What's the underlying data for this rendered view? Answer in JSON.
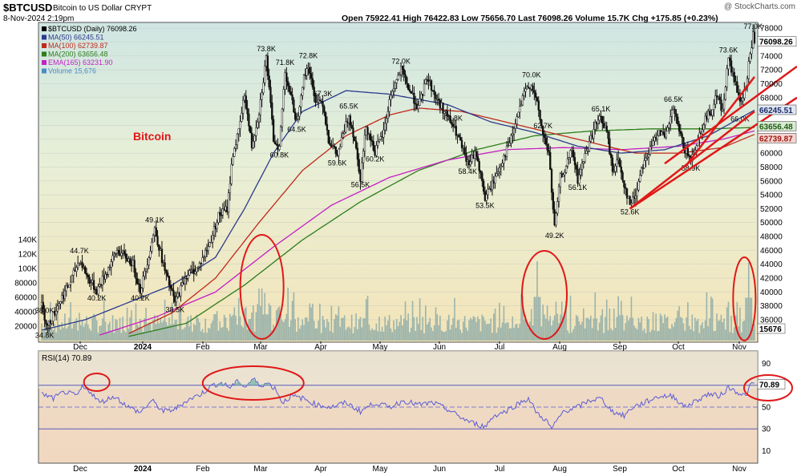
{
  "header": {
    "symbol": "$BTCUSD",
    "desc": "Bitcoin to US Dollar  CRYPT",
    "date": "8-Nov-2024 2:19pm",
    "ohlc": "Open 75922.41  High 76422.83  Low 75656.70  Last 76098.26  Volume 15.7K  Chg +175.85 (+0.23%)",
    "watermark": "@ StockCharts.com"
  },
  "legend": [
    {
      "text": "$BTCUSD (Daily) 76098.26",
      "color": "#000000"
    },
    {
      "text": "MA(50) 66245.51",
      "color": "#2b3a8c"
    },
    {
      "text": "MA(100) 62739.87",
      "color": "#c0281c"
    },
    {
      "text": "MA(200) 63656.48",
      "color": "#2e7d1c"
    },
    {
      "text": "EMA(165) 63231.90",
      "color": "#c51fc5"
    },
    {
      "text": "Volume 15,676",
      "color": "#4a8cc7"
    }
  ],
  "annotation_text": "Bitcoin",
  "colors": {
    "price": "#000000",
    "ma50": "#2b3a8c",
    "ma100": "#c0281c",
    "ma200": "#2e7d1c",
    "ema165": "#c51fc5",
    "volume": "#7fa3a6",
    "rsi": "#5b5bd6",
    "annot": "#e01818"
  },
  "right_axis_ticks": [
    "78000",
    "76000",
    "74000",
    "72000",
    "70000",
    "68000",
    "66000",
    "64000",
    "62000",
    "60000",
    "58000",
    "56000",
    "54000",
    "52000",
    "50000",
    "48000",
    "46000",
    "44000",
    "42000",
    "40000",
    "38000",
    "36000"
  ],
  "price_tags": {
    "last": "76098.26",
    "ma50": "66245.51",
    "ma200": "63656.48",
    "ma100": "62739.87",
    "volume": "15676"
  },
  "volume_ticks": [
    "140K",
    "120K",
    "100K",
    "80000",
    "60000",
    "40000",
    "20000"
  ],
  "rsi": {
    "label": "RSI(14) 70.89",
    "value_tag": "70.89",
    "ticks": [
      "90",
      "70",
      "50",
      "30",
      "10"
    ]
  },
  "x_labels": [
    "Dec",
    "2024",
    "Feb",
    "Mar",
    "Apr",
    "May",
    "Jun",
    "Jul",
    "Aug",
    "Sep",
    "Oct",
    "Nov"
  ],
  "chart_data": {
    "type": "candlestick",
    "title": "$BTCUSD Bitcoin to US Dollar CRYPT (Daily)",
    "price_range": [
      33000,
      78600
    ],
    "price_path": [
      [
        0,
        38.0
      ],
      [
        4,
        35.0
      ],
      [
        12,
        38.5
      ],
      [
        20,
        41.5
      ],
      [
        26,
        44.7
      ],
      [
        32,
        42.0
      ],
      [
        38,
        40.2
      ],
      [
        45,
        43.0
      ],
      [
        52,
        46.0
      ],
      [
        58,
        45.0
      ],
      [
        63,
        44.0
      ],
      [
        68,
        40.2
      ],
      [
        72,
        43.5
      ],
      [
        78,
        49.1
      ],
      [
        85,
        43.0
      ],
      [
        92,
        38.5
      ],
      [
        100,
        42.5
      ],
      [
        108,
        43.5
      ],
      [
        116,
        47.0
      ],
      [
        122,
        51.0
      ],
      [
        128,
        52.0
      ],
      [
        132,
        60.0
      ],
      [
        136,
        63.0
      ],
      [
        140,
        68.5
      ],
      [
        145,
        61.0
      ],
      [
        150,
        66.0
      ],
      [
        155,
        73.8
      ],
      [
        160,
        62.0
      ],
      [
        164,
        60.8
      ],
      [
        168,
        71.8
      ],
      [
        172,
        68.0
      ],
      [
        176,
        64.5
      ],
      [
        180,
        70.0
      ],
      [
        184,
        72.8
      ],
      [
        188,
        68.0
      ],
      [
        194,
        67.3
      ],
      [
        198,
        62.0
      ],
      [
        204,
        59.6
      ],
      [
        212,
        65.5
      ],
      [
        216,
        62.0
      ],
      [
        220,
        56.5
      ],
      [
        224,
        64.0
      ],
      [
        230,
        60.2
      ],
      [
        236,
        63.0
      ],
      [
        241,
        68.5
      ],
      [
        248,
        72.0
      ],
      [
        254,
        69.0
      ],
      [
        260,
        66.5
      ],
      [
        266,
        71.0
      ],
      [
        272,
        68.0
      ],
      [
        278,
        66.0
      ],
      [
        284,
        63.8
      ],
      [
        288,
        62.0
      ],
      [
        294,
        58.4
      ],
      [
        300,
        60.0
      ],
      [
        306,
        53.5
      ],
      [
        312,
        56.0
      ],
      [
        318,
        59.0
      ],
      [
        324,
        62.0
      ],
      [
        330,
        66.5
      ],
      [
        334,
        69.0
      ],
      [
        338,
        70.0
      ],
      [
        342,
        67.0
      ],
      [
        346,
        62.7
      ],
      [
        350,
        60.0
      ],
      [
        354,
        49.2
      ],
      [
        358,
        56.5
      ],
      [
        362,
        58.0
      ],
      [
        366,
        60.5
      ],
      [
        370,
        56.1
      ],
      [
        374,
        59.0
      ],
      [
        378,
        61.5
      ],
      [
        382,
        64.0
      ],
      [
        386,
        65.1
      ],
      [
        390,
        63.0
      ],
      [
        394,
        57.5
      ],
      [
        398,
        59.0
      ],
      [
        402,
        55.5
      ],
      [
        406,
        52.6
      ],
      [
        410,
        54.0
      ],
      [
        414,
        58.0
      ],
      [
        420,
        60.5
      ],
      [
        426,
        63.5
      ],
      [
        430,
        62.0
      ],
      [
        436,
        66.5
      ],
      [
        440,
        63.0
      ],
      [
        444,
        60.5
      ],
      [
        448,
        59.0
      ],
      [
        452,
        61.5
      ],
      [
        458,
        65.0
      ],
      [
        462,
        66.0
      ],
      [
        466,
        68.5
      ],
      [
        470,
        66.0
      ],
      [
        474,
        73.6
      ],
      [
        478,
        70.5
      ],
      [
        482,
        67.5
      ],
      [
        486,
        69.0
      ],
      [
        488,
        73.0
      ],
      [
        491,
        77.0
      ],
      [
        492,
        76.1
      ]
    ],
    "ma50_path": [
      [
        0,
        34.5
      ],
      [
        30,
        36.0
      ],
      [
        60,
        38.5
      ],
      [
        90,
        41.0
      ],
      [
        120,
        45.0
      ],
      [
        140,
        52.0
      ],
      [
        160,
        60.0
      ],
      [
        180,
        66.0
      ],
      [
        210,
        69.0
      ],
      [
        240,
        68.5
      ],
      [
        280,
        67.0
      ],
      [
        310,
        64.5
      ],
      [
        340,
        63.0
      ],
      [
        370,
        61.0
      ],
      [
        400,
        60.0
      ],
      [
        430,
        60.5
      ],
      [
        460,
        62.5
      ],
      [
        492,
        66.2
      ]
    ],
    "ma100_path": [
      [
        60,
        34.0
      ],
      [
        90,
        37.0
      ],
      [
        120,
        42.0
      ],
      [
        150,
        50.0
      ],
      [
        180,
        57.5
      ],
      [
        210,
        62.5
      ],
      [
        240,
        65.5
      ],
      [
        260,
        66.5
      ],
      [
        290,
        66.0
      ],
      [
        320,
        64.5
      ],
      [
        350,
        63.0
      ],
      [
        380,
        61.5
      ],
      [
        410,
        60.0
      ],
      [
        440,
        60.0
      ],
      [
        470,
        60.8
      ],
      [
        492,
        62.7
      ]
    ],
    "ma200_path": [
      [
        60,
        33.6
      ],
      [
        100,
        35.5
      ],
      [
        140,
        41.0
      ],
      [
        180,
        47.5
      ],
      [
        220,
        53.0
      ],
      [
        260,
        57.5
      ],
      [
        300,
        60.5
      ],
      [
        340,
        62.5
      ],
      [
        380,
        63.2
      ],
      [
        420,
        63.5
      ],
      [
        460,
        63.5
      ],
      [
        492,
        63.7
      ]
    ],
    "ema165_path": [
      [
        40,
        33.8
      ],
      [
        80,
        36.5
      ],
      [
        120,
        40.0
      ],
      [
        160,
        46.5
      ],
      [
        200,
        52.5
      ],
      [
        240,
        56.5
      ],
      [
        280,
        59.0
      ],
      [
        320,
        60.5
      ],
      [
        360,
        60.8
      ],
      [
        400,
        60.5
      ],
      [
        440,
        61.0
      ],
      [
        470,
        62.0
      ],
      [
        492,
        63.2
      ]
    ],
    "price_labels": [
      {
        "i": 2,
        "text": "38.0K",
        "v": 37.0
      },
      {
        "i": 2,
        "text": "34.8K",
        "v": 33.4
      },
      {
        "i": 26,
        "text": "44.7K",
        "v": 45.6
      },
      {
        "i": 38,
        "text": "40.2K",
        "v": 38.8
      },
      {
        "i": 68,
        "text": "40.2K",
        "v": 38.8
      },
      {
        "i": 78,
        "text": "49.1K",
        "v": 50.0
      },
      {
        "i": 92,
        "text": "38.5K",
        "v": 37.1
      },
      {
        "i": 155,
        "text": "73.8K",
        "v": 74.7
      },
      {
        "i": 164,
        "text": "60.8K",
        "v": 59.4
      },
      {
        "i": 168,
        "text": "71.8K",
        "v": 72.7
      },
      {
        "i": 176,
        "text": "64.5K",
        "v": 63.1
      },
      {
        "i": 184,
        "text": "72.8K",
        "v": 73.7
      },
      {
        "i": 194,
        "text": "67.3K",
        "v": 68.2
      },
      {
        "i": 204,
        "text": "59.6K",
        "v": 58.2
      },
      {
        "i": 212,
        "text": "65.5K",
        "v": 66.4
      },
      {
        "i": 220,
        "text": "56.5K",
        "v": 55.1
      },
      {
        "i": 230,
        "text": "60.2K",
        "v": 58.8
      },
      {
        "i": 248,
        "text": "72.0K",
        "v": 72.9
      },
      {
        "i": 284,
        "text": "63.8K",
        "v": 64.7
      },
      {
        "i": 294,
        "text": "58.4K",
        "v": 57.0
      },
      {
        "i": 306,
        "text": "53.5K",
        "v": 52.1
      },
      {
        "i": 338,
        "text": "70.0K",
        "v": 70.9
      },
      {
        "i": 346,
        "text": "62.7K",
        "v": 63.6
      },
      {
        "i": 354,
        "text": "49.2K",
        "v": 47.8
      },
      {
        "i": 370,
        "text": "56.1K",
        "v": 54.7
      },
      {
        "i": 386,
        "text": "65.1K",
        "v": 66.0
      },
      {
        "i": 406,
        "text": "52.6K",
        "v": 51.2
      },
      {
        "i": 436,
        "text": "66.5K",
        "v": 67.4
      },
      {
        "i": 448,
        "text": "58.9K",
        "v": 57.5
      },
      {
        "i": 474,
        "text": "73.6K",
        "v": 74.5
      },
      {
        "i": 482,
        "text": "66.0K",
        "v": 64.6
      },
      {
        "i": 491,
        "text": "77.0K",
        "v": 77.9
      }
    ],
    "volume_range": [
      0,
      150
    ],
    "volume_spikes": [
      {
        "i": 150,
        "v": 72
      },
      {
        "i": 154,
        "v": 66
      },
      {
        "i": 342,
        "v": 110
      },
      {
        "i": 488,
        "v": 108
      }
    ],
    "rsi_range": [
      0,
      100
    ],
    "rsi_path": [
      [
        0,
        62
      ],
      [
        8,
        58
      ],
      [
        16,
        64
      ],
      [
        24,
        60
      ],
      [
        28,
        68
      ],
      [
        34,
        64
      ],
      [
        40,
        54
      ],
      [
        50,
        60
      ],
      [
        60,
        50
      ],
      [
        68,
        45
      ],
      [
        76,
        56
      ],
      [
        84,
        46
      ],
      [
        92,
        48
      ],
      [
        100,
        56
      ],
      [
        110,
        62
      ],
      [
        118,
        70
      ],
      [
        124,
        72
      ],
      [
        130,
        68
      ],
      [
        136,
        74
      ],
      [
        140,
        68
      ],
      [
        146,
        76
      ],
      [
        150,
        70
      ],
      [
        156,
        72
      ],
      [
        162,
        66
      ],
      [
        166,
        54
      ],
      [
        172,
        60
      ],
      [
        180,
        58
      ],
      [
        190,
        52
      ],
      [
        200,
        50
      ],
      [
        210,
        54
      ],
      [
        220,
        46
      ],
      [
        230,
        54
      ],
      [
        240,
        50
      ],
      [
        250,
        56
      ],
      [
        260,
        52
      ],
      [
        270,
        54
      ],
      [
        280,
        48
      ],
      [
        290,
        40
      ],
      [
        296,
        36
      ],
      [
        306,
        32
      ],
      [
        312,
        42
      ],
      [
        320,
        46
      ],
      [
        330,
        54
      ],
      [
        336,
        58
      ],
      [
        342,
        44
      ],
      [
        348,
        38
      ],
      [
        352,
        30
      ],
      [
        360,
        46
      ],
      [
        370,
        50
      ],
      [
        378,
        56
      ],
      [
        386,
        58
      ],
      [
        394,
        46
      ],
      [
        402,
        42
      ],
      [
        408,
        50
      ],
      [
        416,
        54
      ],
      [
        426,
        60
      ],
      [
        436,
        60
      ],
      [
        444,
        50
      ],
      [
        452,
        56
      ],
      [
        460,
        62
      ],
      [
        468,
        60
      ],
      [
        474,
        68
      ],
      [
        480,
        64
      ],
      [
        486,
        60
      ],
      [
        490,
        72
      ],
      [
        492,
        70.9
      ]
    ],
    "trendline": {
      "from": [
        406,
        52.0
      ],
      "to": [
        492,
        66.0
      ]
    },
    "trendline2": {
      "from": [
        444,
        58.0
      ],
      "to": [
        492,
        71.0
      ]
    }
  }
}
